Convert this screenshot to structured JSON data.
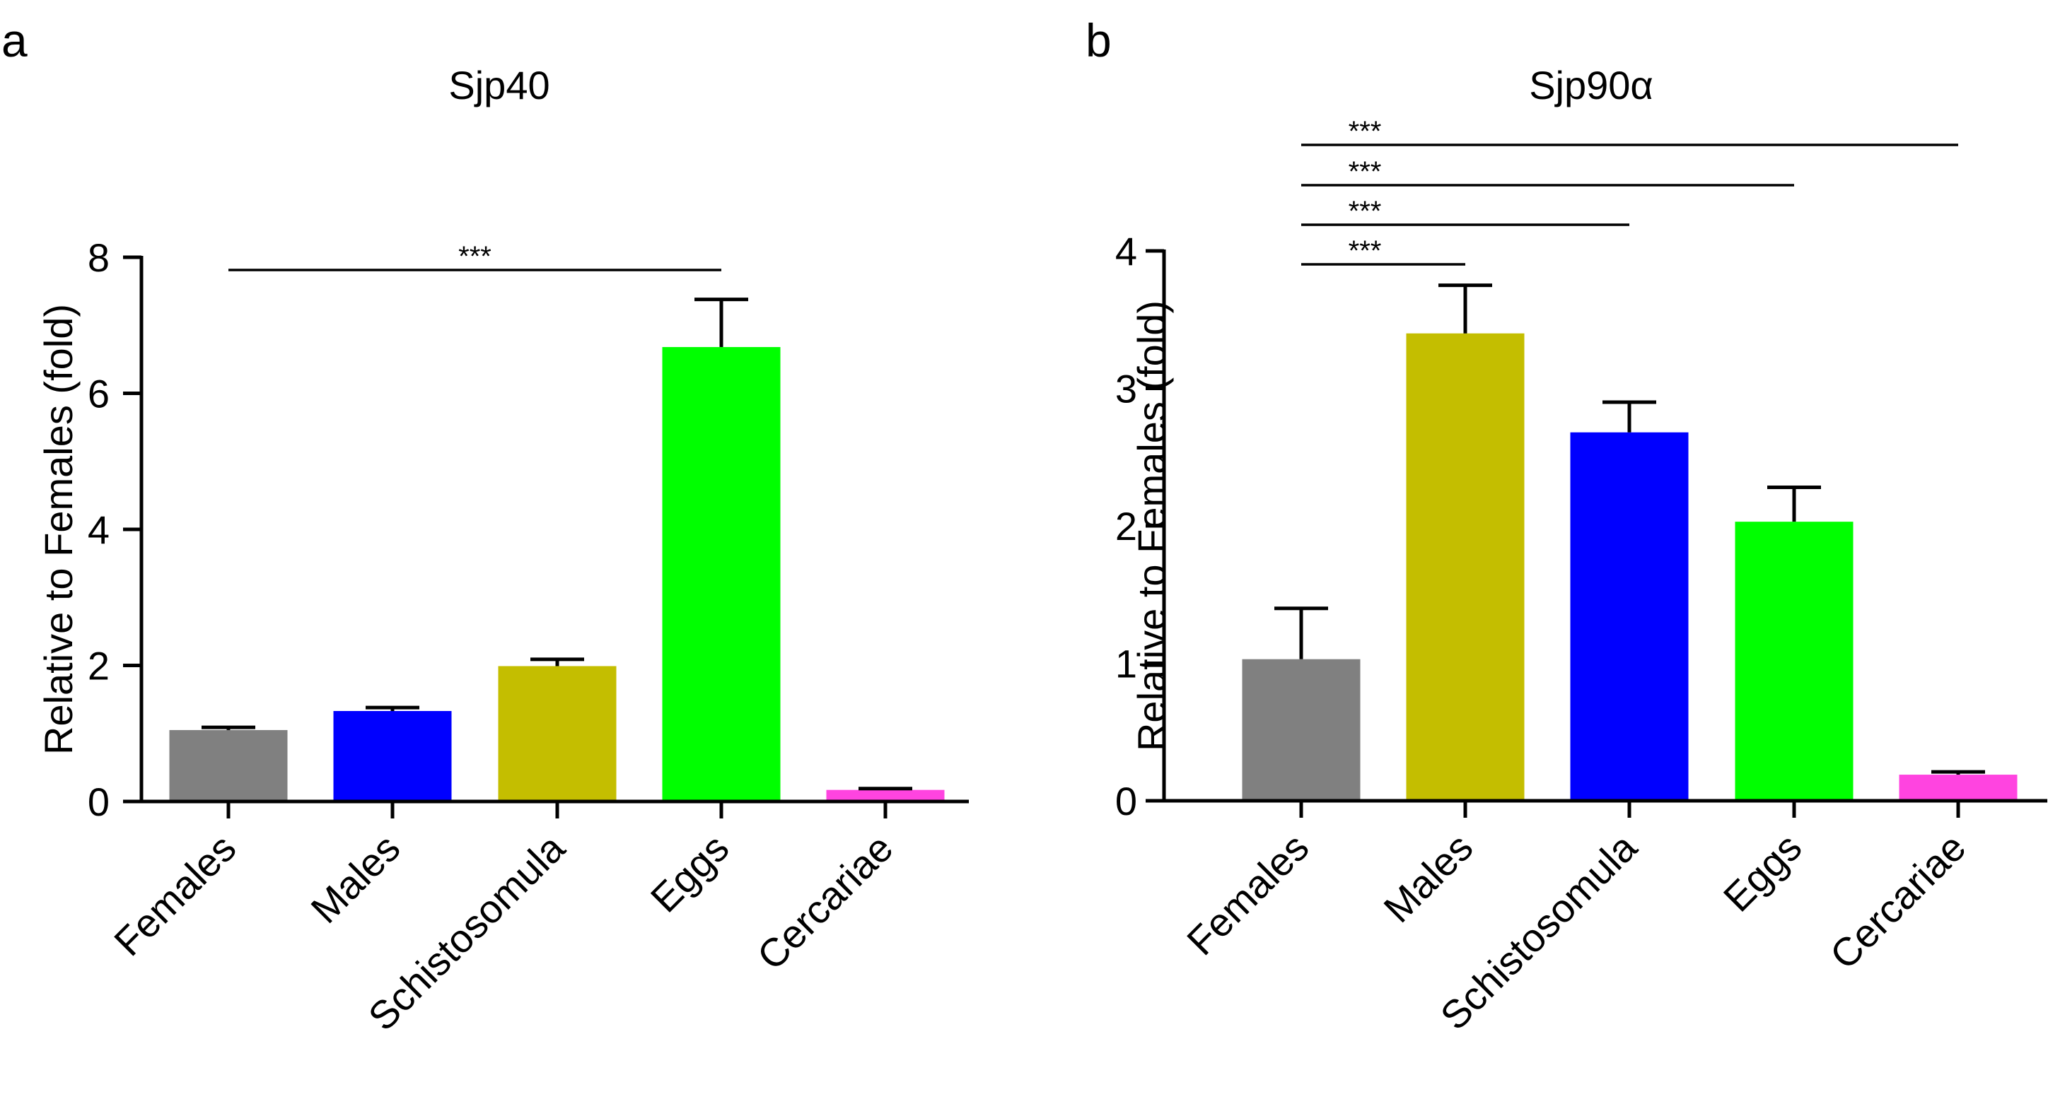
{
  "chart_data": [
    {
      "type": "bar",
      "panel_label": "a",
      "title": "Sjp40",
      "ylabel": "Relative to Females (fold)",
      "xlabel": "",
      "ylim": [
        0,
        8
      ],
      "yticks": [
        0,
        2,
        4,
        6,
        8
      ],
      "categories": [
        "Females",
        "Males",
        "Schistosomula",
        "Eggs",
        "Cercariae"
      ],
      "values": [
        1.05,
        1.33,
        1.99,
        6.68,
        0.17
      ],
      "errors": [
        0.04,
        0.05,
        0.1,
        0.7,
        0.02
      ],
      "colors": [
        "#808080",
        "#0000ff",
        "#c4be00",
        "#00ff00",
        "#ff44e0"
      ],
      "significance": [
        {
          "from": "Females",
          "to": "Eggs",
          "label": "***"
        }
      ]
    },
    {
      "type": "bar",
      "panel_label": "b",
      "title": "Sjp90α",
      "ylabel": "Relative to Females (fold)",
      "xlabel": "",
      "ylim": [
        0,
        4
      ],
      "yticks": [
        0,
        1,
        2,
        3,
        4
      ],
      "categories": [
        "Females",
        "Males",
        "Schistosomula",
        "Eggs",
        "Cercariae"
      ],
      "values": [
        1.03,
        3.4,
        2.68,
        2.03,
        0.19
      ],
      "errors": [
        0.37,
        0.35,
        0.22,
        0.25,
        0.02
      ],
      "colors": [
        "#808080",
        "#c4be00",
        "#0000ff",
        "#00ff00",
        "#ff44e0"
      ],
      "significance": [
        {
          "from": "Females",
          "to": "Males",
          "label": "***"
        },
        {
          "from": "Females",
          "to": "Schistosomula",
          "label": "***"
        },
        {
          "from": "Females",
          "to": "Eggs",
          "label": "***"
        },
        {
          "from": "Females",
          "to": "Cercariae",
          "label": "***"
        }
      ]
    }
  ]
}
